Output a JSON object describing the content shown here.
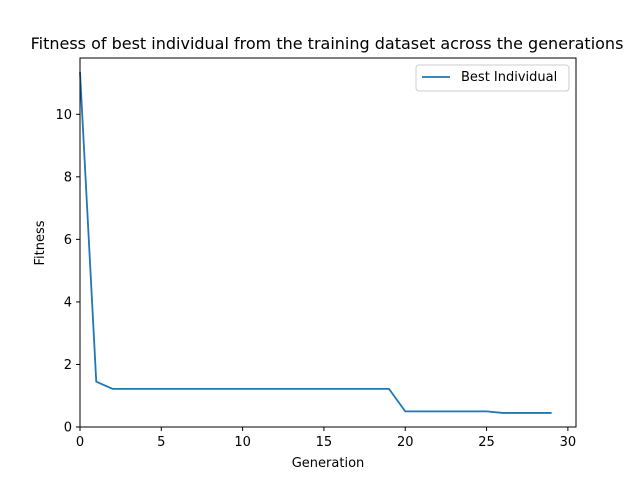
{
  "chart_data": {
    "type": "line",
    "title": "Fitness of best individual from the training dataset across the generations",
    "xlabel": "Generation",
    "ylabel": "Fitness",
    "xlim": [
      0,
      30.5
    ],
    "ylim": [
      0,
      11.8
    ],
    "xticks": [
      0,
      5,
      10,
      15,
      20,
      25,
      30
    ],
    "yticks": [
      0,
      2,
      4,
      6,
      8,
      10
    ],
    "grid": false,
    "legend_position": "top-right",
    "series": [
      {
        "name": "Best Individual",
        "color": "#1f77b4",
        "x": [
          0,
          1,
          2,
          3,
          4,
          5,
          6,
          7,
          8,
          9,
          10,
          11,
          12,
          13,
          14,
          15,
          16,
          17,
          18,
          19,
          20,
          21,
          22,
          23,
          24,
          25,
          26,
          27,
          28,
          29
        ],
        "y": [
          11.35,
          1.45,
          1.22,
          1.22,
          1.22,
          1.22,
          1.22,
          1.22,
          1.22,
          1.22,
          1.22,
          1.22,
          1.22,
          1.22,
          1.22,
          1.22,
          1.22,
          1.22,
          1.22,
          1.22,
          0.5,
          0.5,
          0.5,
          0.5,
          0.5,
          0.5,
          0.45,
          0.45,
          0.45,
          0.45
        ]
      }
    ]
  }
}
